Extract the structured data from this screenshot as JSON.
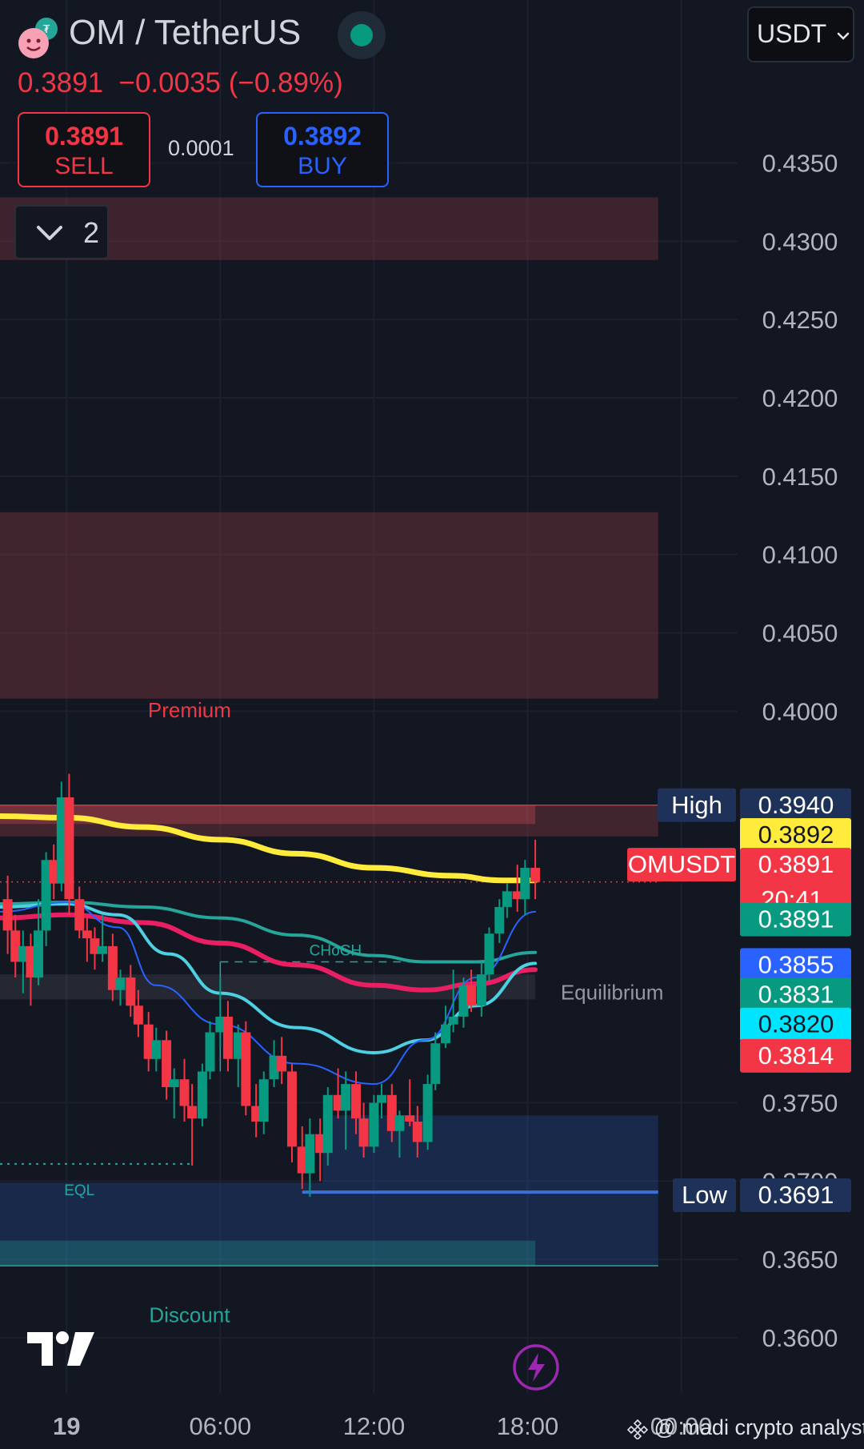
{
  "header": {
    "symbol": "OM / TetherUS",
    "last_price": "0.3891",
    "change": "−0.0035",
    "change_pct": "(−0.89%)",
    "sell_price": "0.3891",
    "sell_label": "SELL",
    "spread": "0.0001",
    "buy_price": "0.3892",
    "buy_label": "BUY",
    "indicator_count": "2",
    "currency": "USDT",
    "status_color": "#089981"
  },
  "watermark": "@ madi crypto analyst",
  "colors": {
    "background": "#131722",
    "up": "#089981",
    "down": "#f23645",
    "ema_yellow": "#ffeb3b",
    "ema_pink": "#e91e63",
    "ema_teal": "#26a69a",
    "ema_cyan": "#4dd0e1",
    "ema_blue": "#2962ff"
  },
  "chart_data": {
    "type": "candlestick",
    "symbol": "OMUSDT",
    "timeframe_label": "20:41",
    "y_ticks": [
      "0.4350",
      "0.4300",
      "0.4250",
      "0.4200",
      "0.4150",
      "0.4100",
      "0.4050",
      "0.4000",
      "0.3750",
      "0.3700",
      "0.3650",
      "0.3600"
    ],
    "ylim": [
      0.3575,
      0.4385
    ],
    "x_ticks": [
      "19",
      "06:00",
      "12:00",
      "18:00",
      "00:00"
    ],
    "x_tick_hours": [
      0,
      6,
      12,
      18,
      24
    ],
    "xlim_hours": [
      -2.6,
      26.2
    ],
    "candles": [
      {
        "t": -2.3,
        "o": 0.388,
        "h": 0.3895,
        "l": 0.3845,
        "c": 0.386
      },
      {
        "t": -2.0,
        "o": 0.386,
        "h": 0.387,
        "l": 0.383,
        "c": 0.384
      },
      {
        "t": -1.7,
        "o": 0.384,
        "h": 0.386,
        "l": 0.382,
        "c": 0.385
      },
      {
        "t": -1.4,
        "o": 0.385,
        "h": 0.3858,
        "l": 0.3812,
        "c": 0.383
      },
      {
        "t": -1.1,
        "o": 0.383,
        "h": 0.388,
        "l": 0.3825,
        "c": 0.386
      },
      {
        "t": -0.8,
        "o": 0.386,
        "h": 0.391,
        "l": 0.385,
        "c": 0.3905
      },
      {
        "t": -0.5,
        "o": 0.3905,
        "h": 0.3915,
        "l": 0.388,
        "c": 0.389
      },
      {
        "t": -0.2,
        "o": 0.389,
        "h": 0.3955,
        "l": 0.3885,
        "c": 0.3945
      },
      {
        "t": 0.1,
        "o": 0.3945,
        "h": 0.396,
        "l": 0.387,
        "c": 0.388
      },
      {
        "t": 0.5,
        "o": 0.388,
        "h": 0.3888,
        "l": 0.3855,
        "c": 0.386
      },
      {
        "t": 0.8,
        "o": 0.386,
        "h": 0.3868,
        "l": 0.384,
        "c": 0.3855
      },
      {
        "t": 1.1,
        "o": 0.3855,
        "h": 0.3862,
        "l": 0.3835,
        "c": 0.3845
      },
      {
        "t": 1.4,
        "o": 0.3845,
        "h": 0.387,
        "l": 0.384,
        "c": 0.385
      },
      {
        "t": 1.8,
        "o": 0.385,
        "h": 0.3858,
        "l": 0.3815,
        "c": 0.3822
      },
      {
        "t": 2.1,
        "o": 0.3822,
        "h": 0.3835,
        "l": 0.3812,
        "c": 0.383
      },
      {
        "t": 2.5,
        "o": 0.383,
        "h": 0.3838,
        "l": 0.3805,
        "c": 0.3812
      },
      {
        "t": 2.8,
        "o": 0.3812,
        "h": 0.3822,
        "l": 0.3792,
        "c": 0.38
      },
      {
        "t": 3.2,
        "o": 0.38,
        "h": 0.3808,
        "l": 0.377,
        "c": 0.3778
      },
      {
        "t": 3.5,
        "o": 0.3778,
        "h": 0.3798,
        "l": 0.377,
        "c": 0.379
      },
      {
        "t": 3.9,
        "o": 0.379,
        "h": 0.3796,
        "l": 0.3752,
        "c": 0.376
      },
      {
        "t": 4.2,
        "o": 0.376,
        "h": 0.3772,
        "l": 0.374,
        "c": 0.3765
      },
      {
        "t": 4.6,
        "o": 0.3765,
        "h": 0.3778,
        "l": 0.3738,
        "c": 0.3748
      },
      {
        "t": 4.9,
        "o": 0.3748,
        "h": 0.3762,
        "l": 0.371,
        "c": 0.374
      },
      {
        "t": 5.3,
        "o": 0.374,
        "h": 0.3775,
        "l": 0.3735,
        "c": 0.377
      },
      {
        "t": 5.6,
        "o": 0.377,
        "h": 0.3802,
        "l": 0.3765,
        "c": 0.3795
      },
      {
        "t": 6.0,
        "o": 0.3795,
        "h": 0.383,
        "l": 0.3785,
        "c": 0.3805
      },
      {
        "t": 6.3,
        "o": 0.3805,
        "h": 0.3815,
        "l": 0.377,
        "c": 0.3778
      },
      {
        "t": 6.7,
        "o": 0.3778,
        "h": 0.38,
        "l": 0.376,
        "c": 0.3795
      },
      {
        "t": 7.0,
        "o": 0.3795,
        "h": 0.3802,
        "l": 0.3742,
        "c": 0.3748
      },
      {
        "t": 7.4,
        "o": 0.3748,
        "h": 0.3762,
        "l": 0.3728,
        "c": 0.3738
      },
      {
        "t": 7.7,
        "o": 0.3738,
        "h": 0.377,
        "l": 0.373,
        "c": 0.3765
      },
      {
        "t": 8.1,
        "o": 0.3765,
        "h": 0.379,
        "l": 0.376,
        "c": 0.378
      },
      {
        "t": 8.4,
        "o": 0.378,
        "h": 0.3792,
        "l": 0.3762,
        "c": 0.377
      },
      {
        "t": 8.8,
        "o": 0.377,
        "h": 0.3775,
        "l": 0.3712,
        "c": 0.3722
      },
      {
        "t": 9.2,
        "o": 0.3722,
        "h": 0.3735,
        "l": 0.3695,
        "c": 0.3705
      },
      {
        "t": 9.5,
        "o": 0.3705,
        "h": 0.374,
        "l": 0.369,
        "c": 0.373
      },
      {
        "t": 9.9,
        "o": 0.373,
        "h": 0.374,
        "l": 0.37,
        "c": 0.3718
      },
      {
        "t": 10.2,
        "o": 0.3718,
        "h": 0.376,
        "l": 0.371,
        "c": 0.3755
      },
      {
        "t": 10.6,
        "o": 0.3755,
        "h": 0.3772,
        "l": 0.374,
        "c": 0.3745
      },
      {
        "t": 10.9,
        "o": 0.3745,
        "h": 0.377,
        "l": 0.372,
        "c": 0.3762
      },
      {
        "t": 11.3,
        "o": 0.3762,
        "h": 0.377,
        "l": 0.373,
        "c": 0.374
      },
      {
        "t": 11.6,
        "o": 0.374,
        "h": 0.375,
        "l": 0.3715,
        "c": 0.3722
      },
      {
        "t": 12.0,
        "o": 0.3722,
        "h": 0.3755,
        "l": 0.3718,
        "c": 0.375
      },
      {
        "t": 12.3,
        "o": 0.375,
        "h": 0.3762,
        "l": 0.374,
        "c": 0.3755
      },
      {
        "t": 12.7,
        "o": 0.3755,
        "h": 0.3762,
        "l": 0.3725,
        "c": 0.3732
      },
      {
        "t": 13.0,
        "o": 0.3732,
        "h": 0.3745,
        "l": 0.3715,
        "c": 0.3742
      },
      {
        "t": 13.4,
        "o": 0.3742,
        "h": 0.3765,
        "l": 0.3735,
        "c": 0.3738
      },
      {
        "t": 13.7,
        "o": 0.3738,
        "h": 0.3748,
        "l": 0.3715,
        "c": 0.3725
      },
      {
        "t": 14.1,
        "o": 0.3725,
        "h": 0.3768,
        "l": 0.372,
        "c": 0.3762
      },
      {
        "t": 14.4,
        "o": 0.3762,
        "h": 0.3795,
        "l": 0.3758,
        "c": 0.3788
      },
      {
        "t": 14.8,
        "o": 0.3788,
        "h": 0.3812,
        "l": 0.3785,
        "c": 0.38
      },
      {
        "t": 15.1,
        "o": 0.38,
        "h": 0.3835,
        "l": 0.3795,
        "c": 0.3805
      },
      {
        "t": 15.5,
        "o": 0.3805,
        "h": 0.383,
        "l": 0.3798,
        "c": 0.3825
      },
      {
        "t": 15.8,
        "o": 0.3825,
        "h": 0.3835,
        "l": 0.3808,
        "c": 0.3812
      },
      {
        "t": 16.2,
        "o": 0.3812,
        "h": 0.384,
        "l": 0.3805,
        "c": 0.3832
      },
      {
        "t": 16.5,
        "o": 0.3832,
        "h": 0.3862,
        "l": 0.3828,
        "c": 0.3858
      },
      {
        "t": 16.9,
        "o": 0.3858,
        "h": 0.388,
        "l": 0.3852,
        "c": 0.3875
      },
      {
        "t": 17.2,
        "o": 0.3875,
        "h": 0.389,
        "l": 0.3868,
        "c": 0.3885
      },
      {
        "t": 17.6,
        "o": 0.3885,
        "h": 0.3902,
        "l": 0.3872,
        "c": 0.388
      },
      {
        "t": 17.9,
        "o": 0.388,
        "h": 0.3905,
        "l": 0.387,
        "c": 0.39
      },
      {
        "t": 18.3,
        "o": 0.39,
        "h": 0.3918,
        "l": 0.388,
        "c": 0.3891
      }
    ],
    "moving_averages": [
      {
        "color": "#ffeb3b",
        "width": 7,
        "points": [
          [
            -2.6,
            0.3933
          ],
          [
            0,
            0.3932
          ],
          [
            3,
            0.3926
          ],
          [
            6,
            0.3918
          ],
          [
            9,
            0.3909
          ],
          [
            12,
            0.39
          ],
          [
            15,
            0.3895
          ],
          [
            17,
            0.3892
          ],
          [
            18.3,
            0.3892
          ]
        ]
      },
      {
        "color": "#26a69a",
        "width": 4,
        "points": [
          [
            -2.6,
            0.3877
          ],
          [
            0,
            0.3878
          ],
          [
            3,
            0.3875
          ],
          [
            6,
            0.3868
          ],
          [
            9,
            0.3857
          ],
          [
            12,
            0.3844
          ],
          [
            14,
            0.384
          ],
          [
            16,
            0.384
          ],
          [
            18.3,
            0.3846
          ]
        ]
      },
      {
        "color": "#e91e63",
        "width": 6,
        "points": [
          [
            -2.6,
            0.3868
          ],
          [
            0,
            0.387
          ],
          [
            3,
            0.3865
          ],
          [
            6,
            0.3852
          ],
          [
            9,
            0.3838
          ],
          [
            12,
            0.3825
          ],
          [
            14,
            0.3822
          ],
          [
            16,
            0.3826
          ],
          [
            18.3,
            0.3835
          ]
        ]
      },
      {
        "color": "#4dd0e1",
        "width": 4,
        "points": [
          [
            -2.6,
            0.3875
          ],
          [
            0,
            0.3877
          ],
          [
            2,
            0.387
          ],
          [
            4,
            0.3845
          ],
          [
            6,
            0.382
          ],
          [
            9,
            0.3798
          ],
          [
            12,
            0.3782
          ],
          [
            14,
            0.379
          ],
          [
            16,
            0.3812
          ],
          [
            18.3,
            0.3839
          ]
        ]
      },
      {
        "color": "#2962ff",
        "width": 2,
        "points": [
          [
            -2.6,
            0.3872
          ],
          [
            0,
            0.3878
          ],
          [
            2,
            0.3862
          ],
          [
            3.5,
            0.3825
          ],
          [
            6,
            0.38
          ],
          [
            9,
            0.3775
          ],
          [
            12,
            0.3762
          ],
          [
            14,
            0.379
          ],
          [
            16,
            0.383
          ],
          [
            18.3,
            0.3872
          ]
        ]
      }
    ],
    "zones": [
      {
        "y0": 0.4328,
        "y1": 0.4288,
        "t0": -2.6,
        "t1": 23.1,
        "color": "rgba(180,70,80,0.26)"
      },
      {
        "y0": 0.4127,
        "y1": 0.4008,
        "t0": -2.6,
        "t1": 23.1,
        "color": "rgba(170,65,75,0.30)"
      },
      {
        "y0": 0.394,
        "y1": 0.392,
        "t0": -2.6,
        "t1": 23.1,
        "color": "rgba(170,65,75,0.30)"
      },
      {
        "y0": 0.394,
        "y1": 0.3928,
        "t0": -2.6,
        "t1": 18.3,
        "color": "rgba(220,80,90,0.32)"
      },
      {
        "y0": 0.3832,
        "y1": 0.3816,
        "t0": -2.6,
        "t1": 18.3,
        "color": "rgba(200,200,210,0.10)"
      },
      {
        "y0": 0.3742,
        "y1": 0.3646,
        "t0": 10.0,
        "t1": 23.1,
        "color": "rgba(41,80,160,0.32)"
      },
      {
        "y0": 0.3699,
        "y1": 0.3646,
        "t0": -2.6,
        "t1": 10.0,
        "color": "rgba(41,80,160,0.32)"
      },
      {
        "y0": 0.3662,
        "y1": 0.3646,
        "t0": -2.6,
        "t1": 18.3,
        "color": "rgba(38,166,154,0.30)"
      }
    ],
    "levels": [
      {
        "y": 0.394,
        "t0": -2.6,
        "t1": 23.1,
        "color": "#f23645",
        "dash": "",
        "width": 1.2
      },
      {
        "y": 0.3891,
        "t0": -2.6,
        "t1": 23.1,
        "color": "#f23645",
        "dash": "2,5",
        "width": 1.5
      },
      {
        "y": 0.3693,
        "t0": 9.2,
        "t1": 23.1,
        "color": "#3d6fd6",
        "dash": "",
        "width": 4
      },
      {
        "y": 0.3646,
        "t0": -2.6,
        "t1": 23.1,
        "color": "#26a69a",
        "dash": "",
        "width": 1.5
      },
      {
        "y": 0.3711,
        "t0": -2.6,
        "t1": 4.9,
        "color": "#26a69a",
        "dash": "3,6",
        "width": 2
      },
      {
        "y": 0.384,
        "t0": 6.0,
        "t1": 15.1,
        "color": "#26a69a",
        "dash": "10,8",
        "width": 1.5
      }
    ],
    "annotations": [
      {
        "text": "Premium",
        "t": 4.8,
        "y": 0.3996,
        "color": "#f23645"
      },
      {
        "text": "CHoCH",
        "t": 10.5,
        "y": 0.3844,
        "color": "#26a69a"
      },
      {
        "text": "Equilibrium",
        "t": 21.3,
        "y": 0.3816,
        "color": "#9598a1"
      },
      {
        "text": "EQL",
        "t": 0.5,
        "y": 0.3691,
        "color": "#26a69a"
      },
      {
        "text": "Discount",
        "t": 4.8,
        "y": 0.361,
        "color": "#26a69a"
      }
    ],
    "right_labels": [
      {
        "name": "High",
        "value": "0.3940",
        "y": 0.394,
        "bg": "#1e3159",
        "fg": "#ffffff"
      },
      {
        "name": "",
        "value": "0.3892",
        "y": 0.3921,
        "bg": "#ffeb3b",
        "fg": "#131722"
      },
      {
        "name": "OMUSDT",
        "value": "0.3891",
        "sub": "20:41",
        "y": 0.3902,
        "bg": "#f23645",
        "fg": "#ffffff"
      },
      {
        "name": "",
        "value": "0.3891",
        "y": 0.3867,
        "bg": "#089981",
        "fg": "#ffffff"
      },
      {
        "name": "",
        "value": "0.3855",
        "y": 0.3838,
        "bg": "#2962ff",
        "fg": "#ffffff"
      },
      {
        "name": "",
        "value": "0.3831",
        "y": 0.3819,
        "bg": "#089981",
        "fg": "#ffffff"
      },
      {
        "name": "",
        "value": "0.3820",
        "y": 0.38,
        "bg": "#00e5ff",
        "fg": "#131722"
      },
      {
        "name": "",
        "value": "0.3814",
        "y": 0.378,
        "bg": "#f23645",
        "fg": "#ffffff"
      },
      {
        "name": "Low",
        "value": "0.3691",
        "y": 0.3691,
        "bg": "#1e3159",
        "fg": "#ffffff"
      }
    ]
  }
}
